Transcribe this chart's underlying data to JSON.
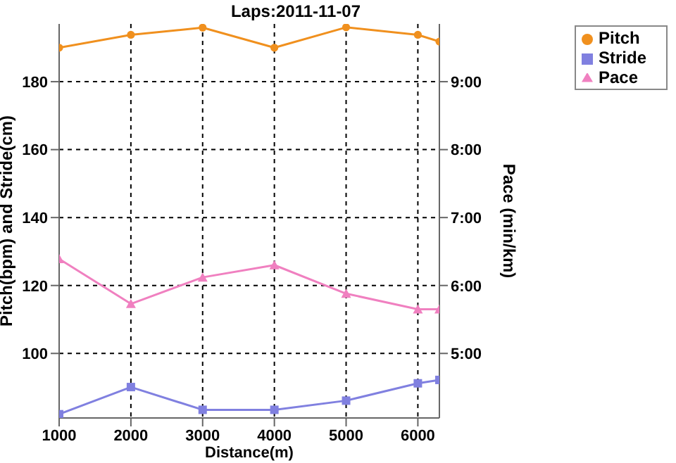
{
  "chart_data": {
    "type": "line",
    "title": "Laps:2011-11-07",
    "xlabel": "Distance(m)",
    "ylabel": "Pitch(bpm) and Stride(cm)",
    "y2label": "Pace (min/km)",
    "x": [
      1000,
      2000,
      3000,
      4000,
      5000,
      6000,
      6300
    ],
    "series": [
      {
        "name": "Pitch",
        "color": "#f0901e",
        "marker": "circle",
        "values": [
          190,
          193.8,
          195.9,
          190,
          196,
          193.8,
          191.8
        ]
      },
      {
        "name": "Stride",
        "color": "#8080e0",
        "marker": "square",
        "values": [
          82.1,
          90.1,
          83.4,
          83.4,
          86.1,
          91.2,
          92.2
        ]
      },
      {
        "name": "Pace",
        "color": "#f080c0",
        "marker": "triangle",
        "axis": "y2",
        "values": [
          6.39,
          5.73,
          6.12,
          6.3,
          5.88,
          5.65,
          5.65
        ]
      }
    ],
    "xlim": [
      1000,
      6300
    ],
    "xticks": [
      1000,
      2000,
      3000,
      4000,
      5000,
      6000
    ],
    "ylim": [
      81,
      197
    ],
    "yticks": [
      100,
      120,
      140,
      160,
      180
    ],
    "y2lim": [
      4.05,
      9.85
    ],
    "y2ticks": [
      {
        "value": 5,
        "label": "5:00"
      },
      {
        "value": 6,
        "label": "6:00"
      },
      {
        "value": 7,
        "label": "7:00"
      },
      {
        "value": 8,
        "label": "8:00"
      },
      {
        "value": 9,
        "label": "9:00"
      }
    ],
    "grid": true,
    "legend": "top right",
    "line_style": "solid"
  }
}
